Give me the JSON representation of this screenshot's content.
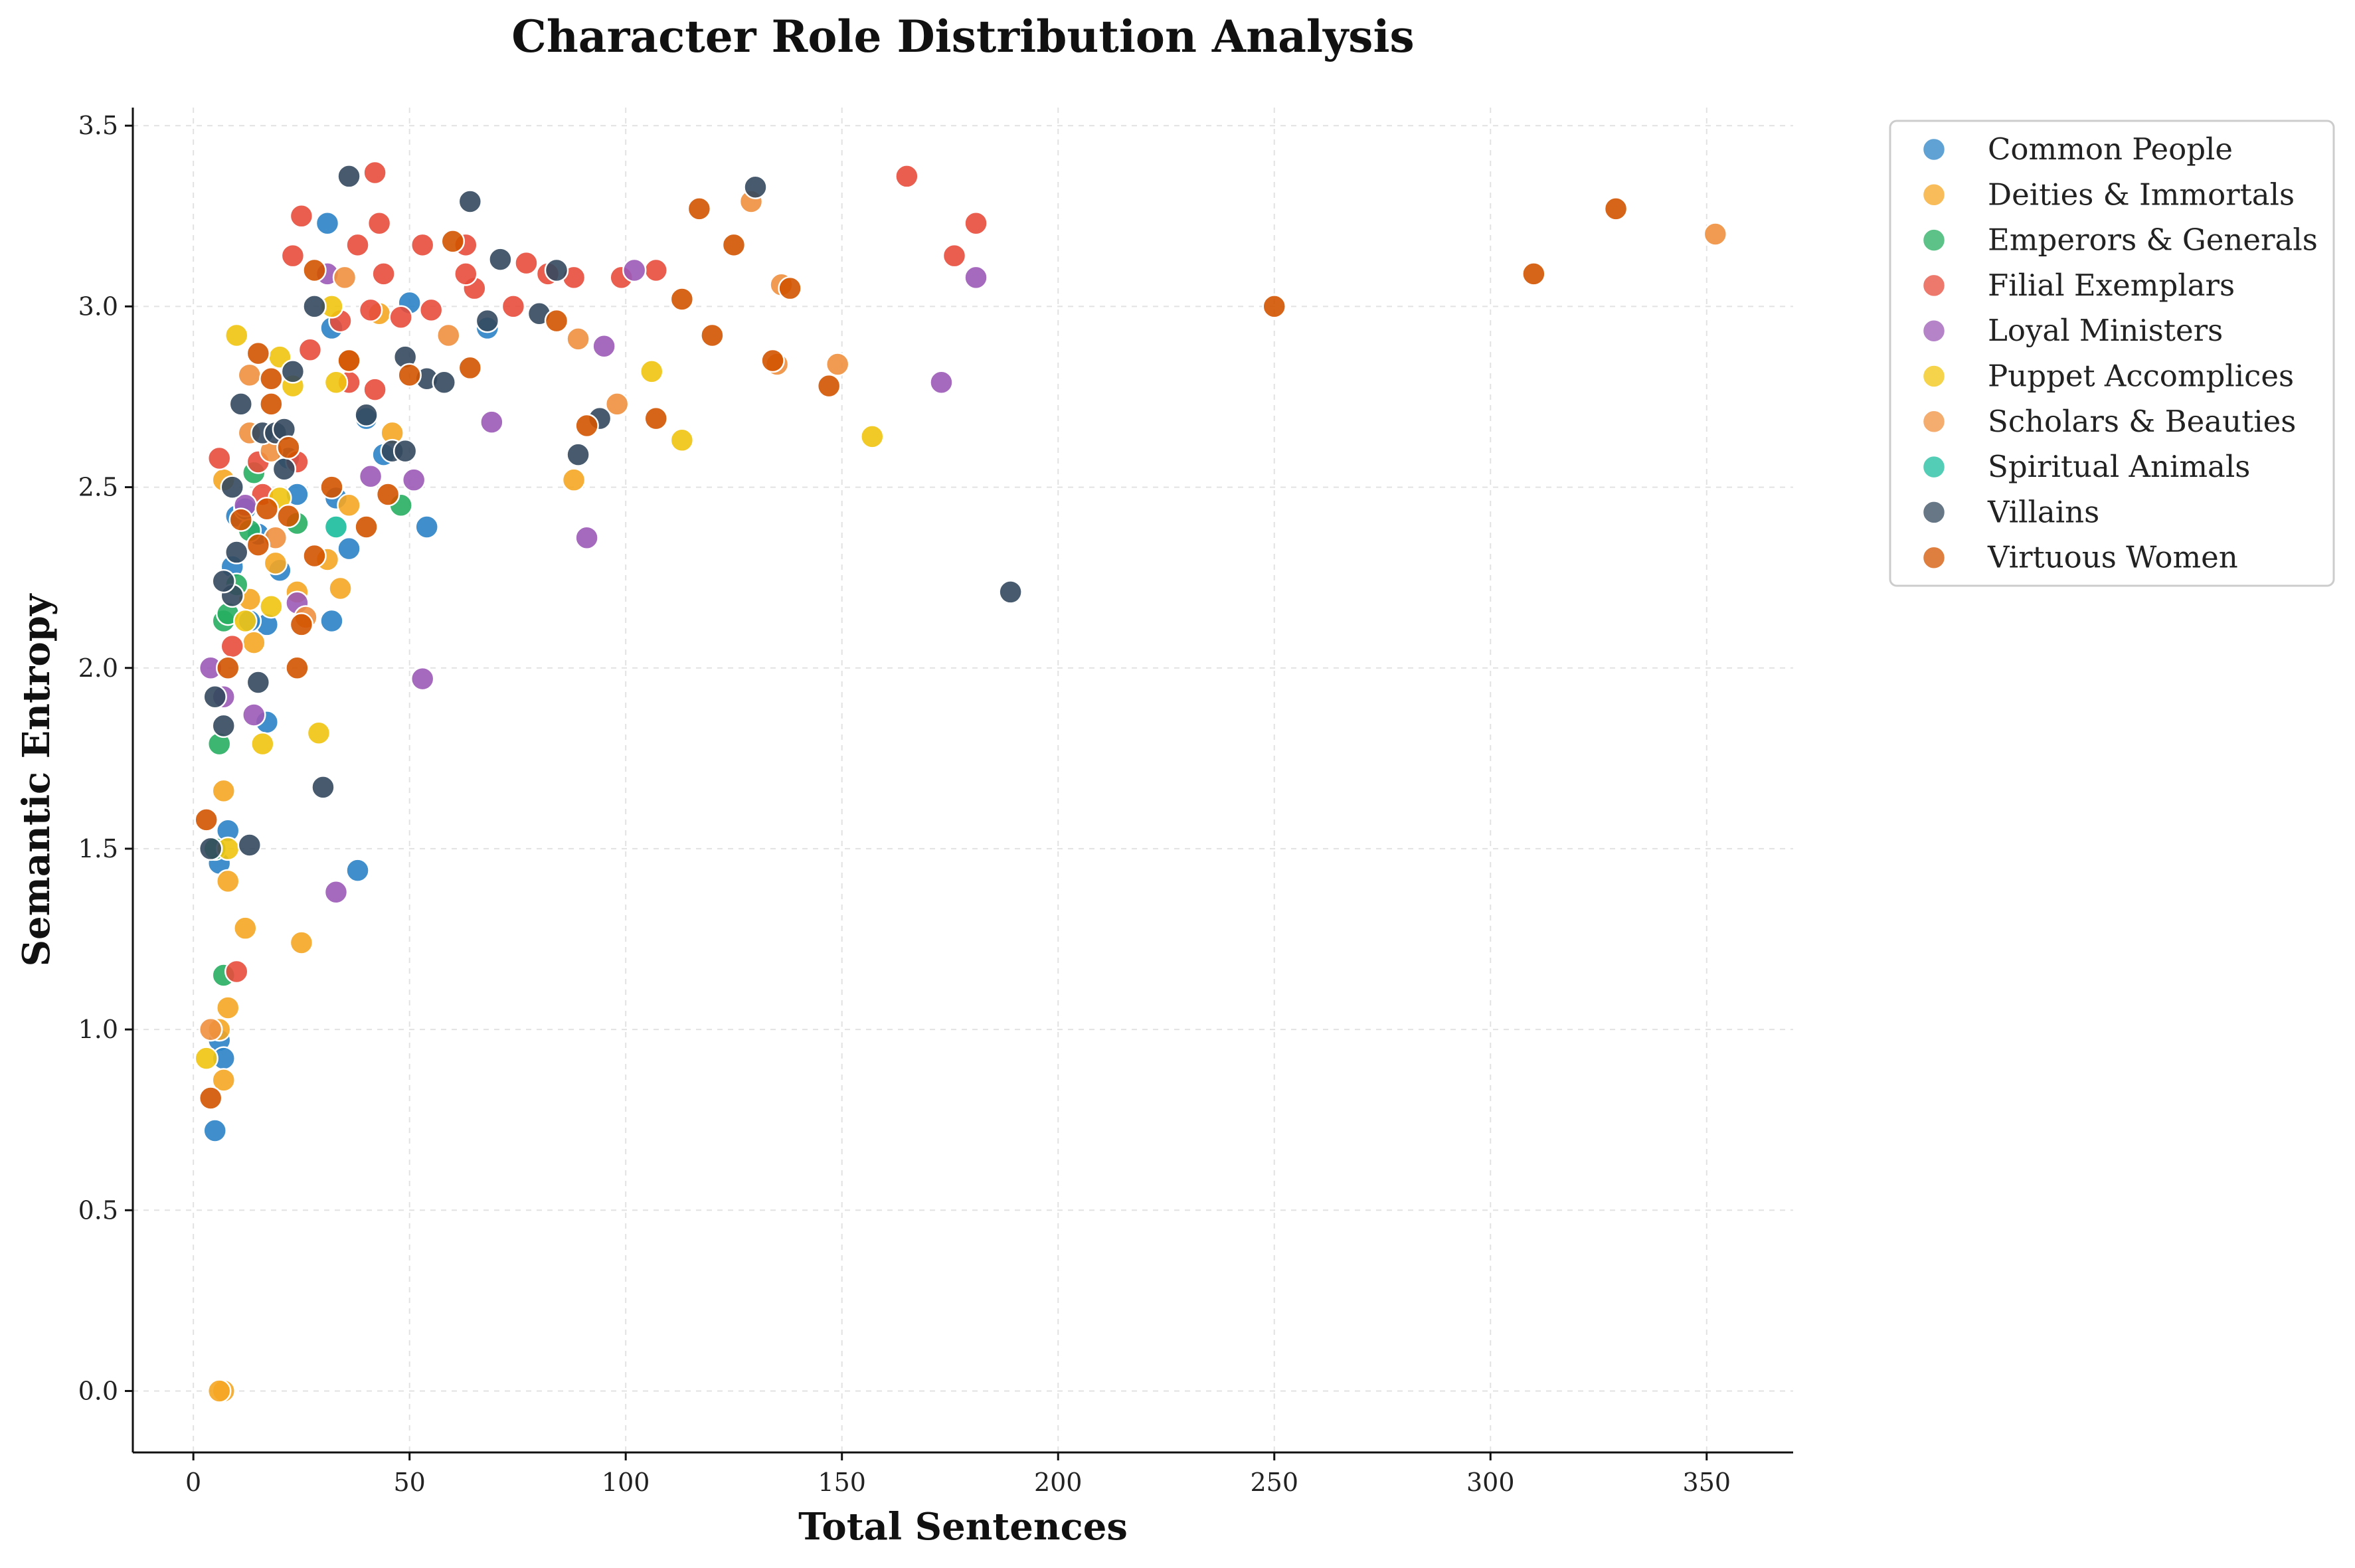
{
  "chart_data": {
    "type": "scatter",
    "title": "Character Role Distribution Analysis",
    "xlabel": "Total Sentences",
    "ylabel": "Semantic Entropy",
    "xlim": [
      -14,
      370
    ],
    "ylim": [
      -0.17,
      3.55
    ],
    "xticks": [
      0,
      50,
      100,
      150,
      200,
      250,
      300,
      350
    ],
    "yticks": [
      0.0,
      0.5,
      1.0,
      1.5,
      2.0,
      2.5,
      3.0,
      3.5
    ],
    "grid": true,
    "legend_position": "outside-top-right",
    "series": [
      {
        "name": "Common People",
        "color": "#2b83c6",
        "points": [
          [
            31,
            3.23
          ],
          [
            50,
            3.01
          ],
          [
            32,
            2.94
          ],
          [
            44,
            2.59
          ],
          [
            40,
            2.69
          ],
          [
            24,
            2.48
          ],
          [
            22,
            2.58
          ],
          [
            10,
            2.42
          ],
          [
            12,
            2.44
          ],
          [
            9,
            2.28
          ],
          [
            20,
            2.27
          ],
          [
            15,
            2.37
          ],
          [
            36,
            2.33
          ],
          [
            17,
            2.12
          ],
          [
            32,
            2.13
          ],
          [
            13,
            2.13
          ],
          [
            17,
            1.85
          ],
          [
            8,
            1.55
          ],
          [
            6,
            1.46
          ],
          [
            54,
            2.39
          ],
          [
            38,
            1.44
          ],
          [
            6,
            0.97
          ],
          [
            7,
            0.92
          ],
          [
            5,
            0.72
          ],
          [
            68,
            2.94
          ],
          [
            33,
            2.47
          ]
        ]
      },
      {
        "name": "Deities & Immortals",
        "color": "#f5a623",
        "points": [
          [
            7,
            0.0
          ],
          [
            6,
            0.0
          ],
          [
            25,
            1.24
          ],
          [
            12,
            1.28
          ],
          [
            8,
            1.41
          ],
          [
            8,
            1.06
          ],
          [
            6,
            1.0
          ],
          [
            7,
            0.86
          ],
          [
            7,
            1.66
          ],
          [
            14,
            2.07
          ],
          [
            13,
            2.19
          ],
          [
            24,
            2.21
          ],
          [
            34,
            2.22
          ],
          [
            19,
            2.29
          ],
          [
            31,
            2.3
          ],
          [
            36,
            2.45
          ],
          [
            46,
            2.65
          ],
          [
            88,
            2.52
          ],
          [
            7,
            2.52
          ],
          [
            43,
            2.98
          ]
        ]
      },
      {
        "name": "Emperors & Generals",
        "color": "#27ae60",
        "points": [
          [
            6,
            1.79
          ],
          [
            7,
            1.15
          ],
          [
            7,
            2.13
          ],
          [
            10,
            2.23
          ],
          [
            8,
            2.15
          ],
          [
            14,
            2.54
          ],
          [
            24,
            2.4
          ],
          [
            48,
            2.45
          ],
          [
            5,
            1.5
          ],
          [
            13,
            2.38
          ]
        ]
      },
      {
        "name": "Filial Exemplars",
        "color": "#e74c3c",
        "points": [
          [
            42,
            3.37
          ],
          [
            25,
            3.25
          ],
          [
            43,
            3.23
          ],
          [
            23,
            3.14
          ],
          [
            38,
            3.17
          ],
          [
            44,
            3.09
          ],
          [
            53,
            3.17
          ],
          [
            63,
            3.17
          ],
          [
            65,
            3.05
          ],
          [
            55,
            2.99
          ],
          [
            48,
            2.97
          ],
          [
            41,
            2.99
          ],
          [
            34,
            2.96
          ],
          [
            27,
            2.88
          ],
          [
            36,
            2.79
          ],
          [
            42,
            2.77
          ],
          [
            63,
            3.09
          ],
          [
            74,
            3.0
          ],
          [
            77,
            3.12
          ],
          [
            82,
            3.09
          ],
          [
            88,
            3.08
          ],
          [
            99,
            3.08
          ],
          [
            107,
            3.1
          ],
          [
            165,
            3.36
          ],
          [
            176,
            3.14
          ],
          [
            181,
            3.23
          ],
          [
            6,
            2.58
          ],
          [
            15,
            2.57
          ],
          [
            16,
            2.48
          ],
          [
            9,
            2.06
          ],
          [
            10,
            1.16
          ],
          [
            24,
            2.57
          ]
        ]
      },
      {
        "name": "Loyal Ministers",
        "color": "#9b59b6",
        "points": [
          [
            4,
            2.0
          ],
          [
            7,
            1.92
          ],
          [
            14,
            1.87
          ],
          [
            24,
            2.18
          ],
          [
            33,
            1.38
          ],
          [
            41,
            2.53
          ],
          [
            51,
            2.52
          ],
          [
            53,
            1.97
          ],
          [
            69,
            2.68
          ],
          [
            91,
            2.36
          ],
          [
            95,
            2.89
          ],
          [
            102,
            3.1
          ],
          [
            173,
            2.79
          ],
          [
            181,
            3.08
          ],
          [
            31,
            3.09
          ],
          [
            12,
            2.45
          ]
        ]
      },
      {
        "name": "Puppet Accomplices",
        "color": "#f1c40f",
        "points": [
          [
            10,
            2.92
          ],
          [
            20,
            2.86
          ],
          [
            23,
            2.78
          ],
          [
            32,
            3.0
          ],
          [
            33,
            2.79
          ],
          [
            20,
            2.47
          ],
          [
            12,
            2.13
          ],
          [
            18,
            2.17
          ],
          [
            16,
            1.79
          ],
          [
            29,
            1.82
          ],
          [
            8,
            1.5
          ],
          [
            3,
            0.92
          ],
          [
            106,
            2.82
          ],
          [
            113,
            2.63
          ],
          [
            157,
            2.64
          ]
        ]
      },
      {
        "name": "Scholars & Beauties",
        "color": "#f0903f",
        "points": [
          [
            35,
            3.08
          ],
          [
            36,
            2.85
          ],
          [
            59,
            2.92
          ],
          [
            89,
            2.91
          ],
          [
            98,
            2.73
          ],
          [
            129,
            3.29
          ],
          [
            135,
            2.84
          ],
          [
            149,
            2.84
          ],
          [
            136,
            3.06
          ],
          [
            13,
            2.81
          ],
          [
            13,
            2.65
          ],
          [
            18,
            2.6
          ],
          [
            26,
            2.14
          ],
          [
            19,
            2.36
          ],
          [
            352,
            3.2
          ],
          [
            4,
            1.0
          ]
        ]
      },
      {
        "name": "Spiritual Animals",
        "color": "#1abc9c",
        "points": [
          [
            33,
            2.39
          ]
        ]
      },
      {
        "name": "Villains",
        "color": "#34495e",
        "points": [
          [
            36,
            3.36
          ],
          [
            64,
            3.29
          ],
          [
            130,
            3.33
          ],
          [
            71,
            3.13
          ],
          [
            84,
            3.1
          ],
          [
            80,
            2.98
          ],
          [
            68,
            2.96
          ],
          [
            28,
            3.0
          ],
          [
            23,
            2.82
          ],
          [
            11,
            2.73
          ],
          [
            16,
            2.65
          ],
          [
            19,
            2.65
          ],
          [
            21,
            2.66
          ],
          [
            21,
            2.55
          ],
          [
            9,
            2.5
          ],
          [
            40,
            2.7
          ],
          [
            46,
            2.6
          ],
          [
            49,
            2.6
          ],
          [
            49,
            2.86
          ],
          [
            54,
            2.8
          ],
          [
            58,
            2.79
          ],
          [
            89,
            2.59
          ],
          [
            94,
            2.69
          ],
          [
            10,
            2.32
          ],
          [
            9,
            2.2
          ],
          [
            7,
            2.24
          ],
          [
            15,
            1.96
          ],
          [
            5,
            1.92
          ],
          [
            7,
            1.84
          ],
          [
            13,
            1.51
          ],
          [
            4,
            1.5
          ],
          [
            30,
            1.67
          ],
          [
            189,
            2.21
          ]
        ]
      },
      {
        "name": "Virtuous Women",
        "color": "#d35400",
        "points": [
          [
            117,
            3.27
          ],
          [
            125,
            3.17
          ],
          [
            113,
            3.02
          ],
          [
            120,
            2.92
          ],
          [
            138,
            3.05
          ],
          [
            134,
            2.85
          ],
          [
            147,
            2.78
          ],
          [
            107,
            2.69
          ],
          [
            91,
            2.67
          ],
          [
            84,
            2.96
          ],
          [
            60,
            3.18
          ],
          [
            64,
            2.83
          ],
          [
            50,
            2.81
          ],
          [
            40,
            2.39
          ],
          [
            45,
            2.48
          ],
          [
            32,
            2.5
          ],
          [
            28,
            2.31
          ],
          [
            24,
            2.0
          ],
          [
            25,
            2.12
          ],
          [
            22,
            2.42
          ],
          [
            22,
            2.61
          ],
          [
            17,
            2.44
          ],
          [
            15,
            2.34
          ],
          [
            11,
            2.41
          ],
          [
            8,
            2.0
          ],
          [
            15,
            2.87
          ],
          [
            18,
            2.8
          ],
          [
            18,
            2.73
          ],
          [
            28,
            3.1
          ],
          [
            36,
            2.85
          ],
          [
            250,
            3.0
          ],
          [
            310,
            3.09
          ],
          [
            329,
            3.27
          ],
          [
            3,
            1.58
          ],
          [
            4,
            0.81
          ]
        ]
      }
    ]
  }
}
